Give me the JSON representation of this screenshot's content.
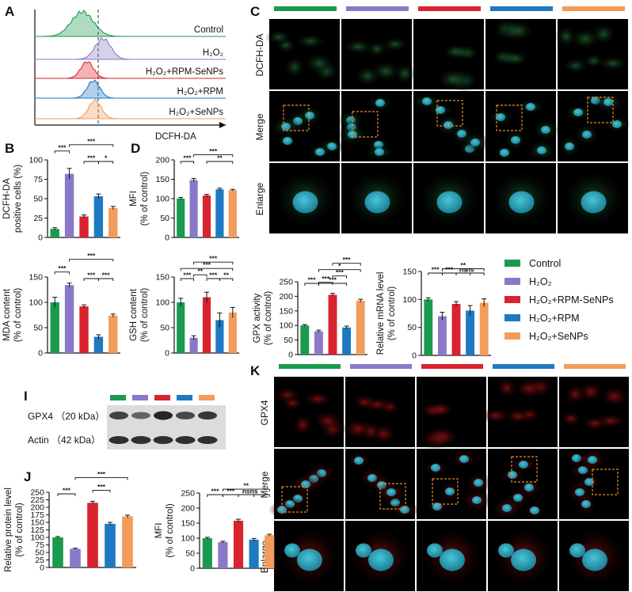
{
  "colors": {
    "control": "#1a9a4e",
    "h2o2": "#8a79c9",
    "rpm_senps": "#d9232e",
    "rpm": "#1d79c2",
    "senps": "#f29c5b"
  },
  "group_names": [
    "Control",
    "H2O2",
    "H2O2+RPM-SeNPs",
    "H2O2+RPM",
    "H2O2+SeNPs"
  ],
  "panel_letters": {
    "a": "A",
    "b": "B",
    "c": "C",
    "d": "D",
    "i": "I",
    "j": "J",
    "k": "K"
  },
  "panel_a": {
    "xlabel": "DCFH-DA",
    "labels": [
      "Control",
      "H₂O₂",
      "H₂O₂+RPM-SeNPs",
      "H₂O₂+RPM",
      "H₂O₂+SeNPs"
    ]
  },
  "panel_c": {
    "rows": [
      "DCFH-DA",
      "Merge",
      "Enlarge"
    ]
  },
  "panel_k": {
    "rows": [
      "GPX4",
      "Merge",
      "Enlarge"
    ]
  },
  "panel_i": {
    "rows": [
      "GPX4 （20 kDa）",
      "Actin （42 kDa）"
    ]
  },
  "legend": {
    "items": [
      "Control",
      "H₂O₂",
      "H₂O₂+RPM-SeNPs",
      "H₂O₂+RPM",
      "H₂O₂+SeNPs"
    ]
  },
  "chart_data": [
    {
      "id": "dcfh_positive",
      "type": "bar",
      "ylabel": [
        "DCFH-DA",
        "positive cells (%)"
      ],
      "ylim": [
        0,
        100
      ],
      "yticks": [
        0,
        25,
        50,
        75,
        100
      ],
      "values": [
        11,
        82,
        27,
        53,
        38
      ],
      "errors": [
        1.5,
        7,
        2,
        3,
        2
      ],
      "sig": [
        "***",
        "***",
        "***",
        "*"
      ]
    },
    {
      "id": "mfi_dcfh",
      "type": "bar",
      "ylabel": [
        "MFI",
        "(% of control)"
      ],
      "ylim": [
        0,
        200
      ],
      "yticks": [
        0,
        50,
        100,
        150,
        200
      ],
      "values": [
        100,
        148,
        108,
        124,
        122
      ],
      "errors": [
        3,
        4,
        3,
        3,
        2
      ],
      "sig": [
        "***",
        "***",
        "**"
      ]
    },
    {
      "id": "mda",
      "type": "bar",
      "ylabel": [
        "MDA content",
        "(% of control)"
      ],
      "ylim": [
        0,
        150
      ],
      "yticks": [
        0,
        50,
        100,
        150
      ],
      "values": [
        100,
        134,
        92,
        32,
        74
      ],
      "errors": [
        10,
        4,
        3,
        4,
        3
      ],
      "sig": [
        "***",
        "***",
        "***",
        "***"
      ]
    },
    {
      "id": "gsh",
      "type": "bar",
      "ylabel": [
        "GSH content",
        "(% of control)"
      ],
      "ylim": [
        0,
        150
      ],
      "yticks": [
        0,
        50,
        100,
        150
      ],
      "values": [
        100,
        30,
        110,
        65,
        80
      ],
      "errors": [
        8,
        4,
        10,
        14,
        10
      ],
      "sig": [
        "***",
        "***",
        "**",
        "***",
        "***",
        "**"
      ]
    },
    {
      "id": "gpx_activity",
      "type": "bar",
      "ylabel": [
        "GPX activity",
        "(% of control)"
      ],
      "ylim": [
        0,
        250
      ],
      "yticks": [
        0,
        50,
        100,
        150,
        200,
        250
      ],
      "values": [
        100,
        80,
        205,
        93,
        185
      ],
      "errors": [
        3,
        4,
        5,
        5,
        5
      ],
      "sig": [
        "***",
        "***",
        "***",
        "*",
        "***",
        "***"
      ]
    },
    {
      "id": "mrna",
      "type": "bar",
      "ylabel": [
        "Relative mRNA level",
        "(% of control)"
      ],
      "ylim": [
        0,
        150
      ],
      "yticks": [
        0,
        50,
        100,
        150
      ],
      "values": [
        100,
        70,
        92,
        80,
        94
      ],
      "errors": [
        3,
        7,
        4,
        9,
        7
      ],
      "sig": [
        "***",
        "***",
        "ns",
        "ns",
        "**"
      ]
    },
    {
      "id": "protein",
      "type": "bar",
      "ylabel": [
        "Relative protein level",
        "(% of control)"
      ],
      "ylim": [
        0,
        250
      ],
      "yticks": [
        0,
        25,
        50,
        75,
        100,
        125,
        150,
        175,
        200,
        225,
        250
      ],
      "values": [
        100,
        62,
        215,
        145,
        170
      ],
      "errors": [
        3,
        2,
        5,
        5,
        4
      ],
      "sig": [
        "***",
        "***",
        "***"
      ]
    },
    {
      "id": "mfi_gpx4",
      "type": "bar",
      "ylabel": [
        "MFI",
        "(% of control)"
      ],
      "ylim": [
        0,
        250
      ],
      "yticks": [
        0,
        50,
        100,
        150,
        200,
        250
      ],
      "values": [
        100,
        87,
        158,
        95,
        110
      ],
      "errors": [
        3,
        3,
        5,
        4,
        3
      ],
      "sig": [
        "***",
        "***",
        "ns",
        "ns",
        "**"
      ]
    }
  ]
}
